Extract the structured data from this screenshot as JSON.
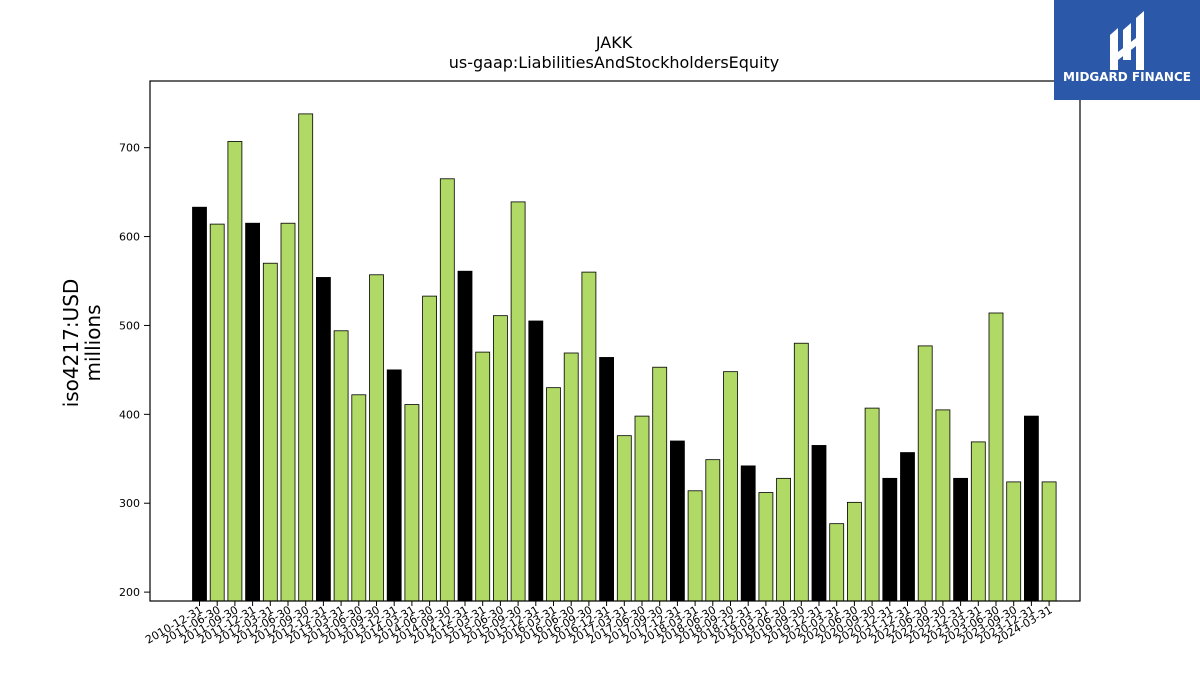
{
  "chart_data": {
    "type": "bar",
    "title": "JAKK",
    "subtitle": "us-gaap:LiabilitiesAndStockholdersEquity",
    "ylabel": "iso4217:USD",
    "ylabel2": "millions",
    "xlabel": "",
    "ylim": [
      190,
      775
    ],
    "yticks": [
      200,
      300,
      400,
      500,
      600,
      700
    ],
    "grid": false,
    "colors": {
      "annual": "#000000",
      "quarterly": "#b0d965",
      "edge": "#000000"
    },
    "categories": [
      "2010-12-31",
      "2011-06-30",
      "2011-09-30",
      "2011-12-31",
      "2012-03-31",
      "2012-06-30",
      "2012-09-30",
      "2012-12-31",
      "2013-03-31",
      "2013-06-30",
      "2013-09-30",
      "2013-12-31",
      "2014-03-31",
      "2014-06-30",
      "2014-09-30",
      "2014-12-31",
      "2015-03-31",
      "2015-06-30",
      "2015-09-30",
      "2015-12-31",
      "2016-03-31",
      "2016-06-30",
      "2016-09-30",
      "2016-12-31",
      "2017-03-31",
      "2017-06-30",
      "2017-09-30",
      "2017-12-31",
      "2018-03-31",
      "2018-06-30",
      "2018-09-30",
      "2018-12-31",
      "2019-03-31",
      "2019-06-30",
      "2019-09-30",
      "2019-12-31",
      "2020-03-31",
      "2020-06-30",
      "2020-09-30",
      "2020-12-31",
      "2021-12-31",
      "2022-06-30",
      "2022-09-30",
      "2022-12-31",
      "2023-03-31",
      "2023-06-30",
      "2023-09-30",
      "2023-12-31",
      "2024-03-31"
    ],
    "values": [
      633,
      614,
      707,
      615,
      570,
      615,
      738,
      554,
      494,
      422,
      557,
      450,
      411,
      533,
      665,
      561,
      470,
      511,
      639,
      505,
      430,
      469,
      560,
      464,
      376,
      398,
      453,
      370,
      314,
      349,
      448,
      342,
      312,
      328,
      480,
      365,
      277,
      301,
      407,
      328,
      357,
      477,
      405,
      328,
      369,
      514,
      324,
      398,
      324
    ],
    "is_annual": [
      true,
      false,
      false,
      true,
      false,
      false,
      false,
      true,
      false,
      false,
      false,
      true,
      false,
      false,
      false,
      true,
      false,
      false,
      false,
      true,
      false,
      false,
      false,
      true,
      false,
      false,
      false,
      true,
      false,
      false,
      false,
      true,
      false,
      false,
      false,
      true,
      false,
      false,
      false,
      true,
      true,
      false,
      false,
      true,
      false,
      false,
      false,
      true,
      false
    ]
  },
  "logo": {
    "text": "MIDGARD FINANCE",
    "bg": "#2b58a8",
    "fg": "#ffffff"
  }
}
